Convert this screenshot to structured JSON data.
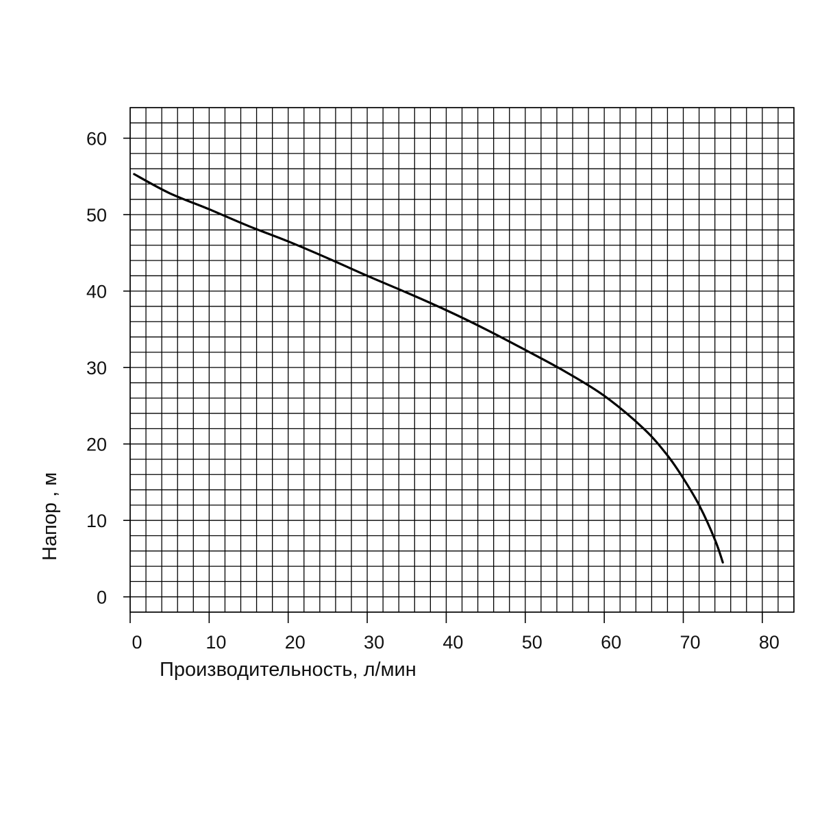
{
  "chart_data": {
    "type": "line",
    "xlabel": "Производительность, л/мин",
    "ylabel": "Напор , м",
    "xlim": [
      0,
      84
    ],
    "ylim": [
      -2,
      64
    ],
    "x_ticks": [
      "0",
      "10",
      "20",
      "30",
      "40",
      "50",
      "60",
      "70",
      "80"
    ],
    "y_ticks": [
      "0",
      "10",
      "20",
      "30",
      "40",
      "50",
      "60"
    ],
    "grid": true,
    "grid_step_x": 2,
    "grid_step_y": 2,
    "line_color": "#000000",
    "series": [
      {
        "x": [
          0.5,
          5,
          10,
          15,
          20,
          25,
          30,
          35,
          40,
          45,
          50,
          55,
          60,
          65,
          68,
          70,
          72,
          74,
          75
        ],
        "y": [
          55.3,
          52.8,
          50.7,
          48.5,
          46.5,
          44.3,
          42.0,
          39.8,
          37.5,
          35.0,
          32.3,
          29.5,
          26.3,
          22.0,
          18.5,
          15.5,
          12.0,
          7.5,
          4.5
        ]
      }
    ]
  }
}
